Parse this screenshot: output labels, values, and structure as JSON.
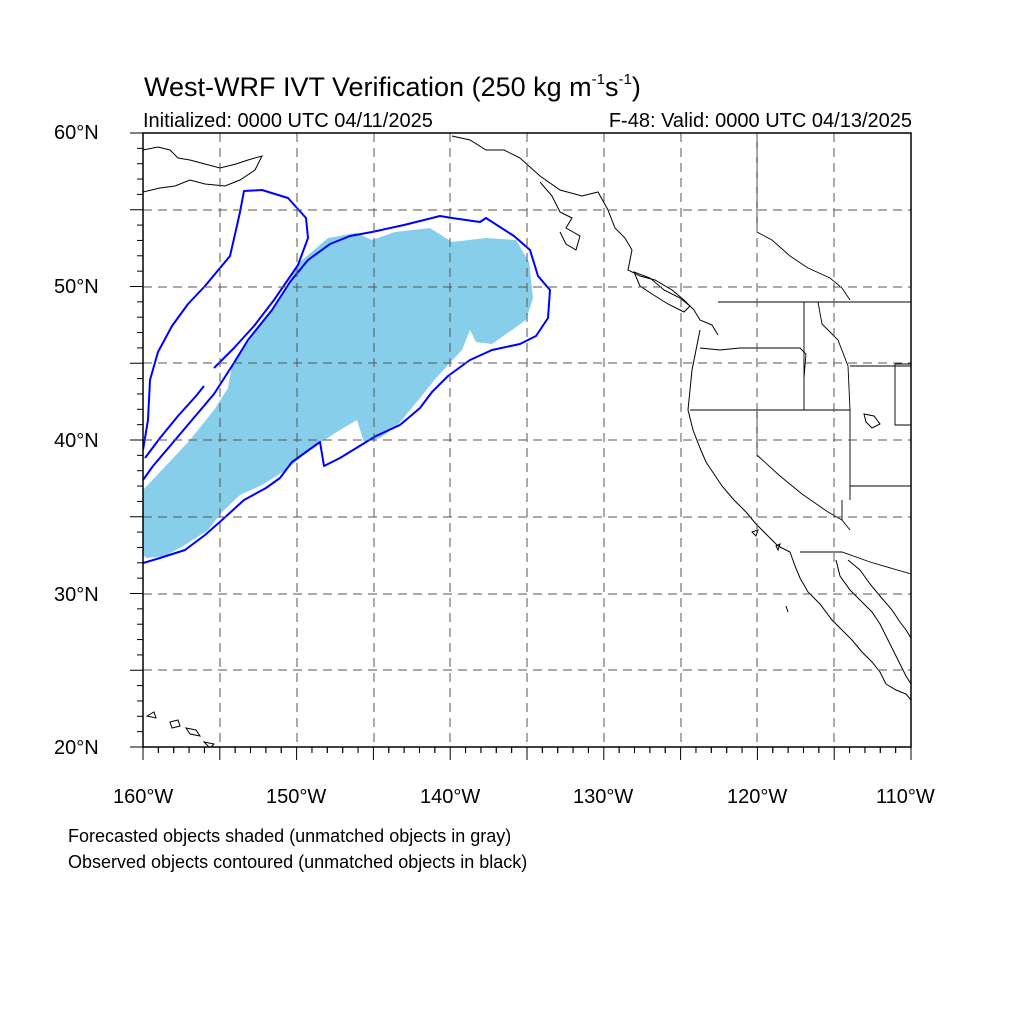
{
  "title": {
    "main": "West-WRF IVT Verification (250 kg m",
    "sup1": "-1",
    "mid": "s",
    "sup2": "-1",
    "end": ")"
  },
  "initialized": "Initialized: 0000 UTC 04/11/2025",
  "valid": "F-48: Valid: 0000 UTC 04/13/2025",
  "lat_labels": [
    "60°N",
    "50°N",
    "40°N",
    "30°N",
    "20°N"
  ],
  "lon_labels": [
    "160°W",
    "150°W",
    "140°W",
    "130°W",
    "120°W",
    "110°W"
  ],
  "notes": [
    "Forecasted objects shaded (unmatched objects in gray)",
    "Observed objects contoured (unmatched objects in black)"
  ],
  "map_extent": {
    "lon": [
      -160,
      -110
    ],
    "lat": [
      20,
      60
    ]
  },
  "colors": {
    "forecast_fill": "#87ceeb",
    "observed_contour": "#0000ff",
    "coast": "#000000",
    "grid": "#333333"
  }
}
